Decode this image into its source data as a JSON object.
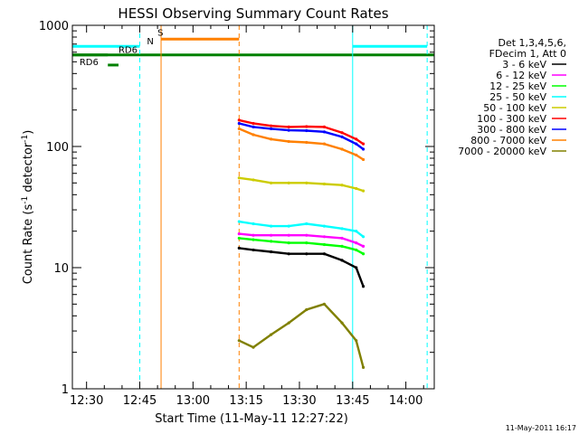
{
  "chart_data": {
    "type": "line",
    "title": "HESSI Observing Summary Count Rates",
    "xlabel": "Start Time (11-May-11 12:27:22)",
    "ylabel_main": "Count Rate (s",
    "ylabel_sup1": "-1",
    "ylabel_mid": " detector",
    "ylabel_sup2": "-1",
    "ylabel_end": ")",
    "x_scale": "time",
    "x_range": [
      "12:26",
      "14:08"
    ],
    "x_ticks": [
      "12:30",
      "12:45",
      "13:00",
      "13:15",
      "13:30",
      "13:45",
      "14:00"
    ],
    "y_scale": "log",
    "y_range": [
      1,
      1000
    ],
    "y_ticks": [
      {
        "label": "1",
        "value": 1
      },
      {
        "label": "10",
        "value": 10
      },
      {
        "label": "100",
        "value": 100
      },
      {
        "label": "1000",
        "value": 1000
      }
    ],
    "legend_header": [
      "Det 1,3,4,5,6,",
      "FDecim 1, Att 0"
    ],
    "legend_position": "right",
    "series": [
      {
        "name": "3 - 6 keV",
        "color": "#000000",
        "x": [
          "13:13",
          "13:17",
          "13:22",
          "13:27",
          "13:32",
          "13:37",
          "13:42",
          "13:46",
          "13:48"
        ],
        "values": [
          14.5,
          14,
          13.5,
          13,
          13,
          13,
          11.5,
          10,
          7
        ]
      },
      {
        "name": "6 - 12 keV",
        "color": "#ff00ff",
        "x": [
          "13:13",
          "13:17",
          "13:22",
          "13:27",
          "13:32",
          "13:37",
          "13:42",
          "13:46",
          "13:48"
        ],
        "values": [
          19,
          18.5,
          18.5,
          18.5,
          18.5,
          18,
          17.5,
          16,
          15
        ]
      },
      {
        "name": "12 - 25 keV",
        "color": "#00ff00",
        "x": [
          "13:13",
          "13:17",
          "13:22",
          "13:27",
          "13:32",
          "13:37",
          "13:42",
          "13:46",
          "13:48"
        ],
        "values": [
          17.5,
          17,
          16.5,
          16,
          16,
          15.5,
          15,
          14,
          13
        ]
      },
      {
        "name": "25 - 50 keV",
        "color": "#00ffff",
        "x": [
          "13:13",
          "13:17",
          "13:22",
          "13:27",
          "13:32",
          "13:37",
          "13:42",
          "13:46",
          "13:48"
        ],
        "values": [
          24,
          23,
          22,
          22,
          23,
          22,
          21,
          20,
          18
        ]
      },
      {
        "name": "50 - 100 keV",
        "color": "#cccc00",
        "x": [
          "13:13",
          "13:17",
          "13:22",
          "13:27",
          "13:32",
          "13:37",
          "13:42",
          "13:46",
          "13:48"
        ],
        "values": [
          55,
          53,
          50,
          50,
          50,
          49,
          48,
          45,
          43
        ]
      },
      {
        "name": "100 - 300 keV",
        "color": "#ff0000",
        "x": [
          "13:13",
          "13:17",
          "13:22",
          "13:27",
          "13:32",
          "13:37",
          "13:42",
          "13:46",
          "13:48"
        ],
        "values": [
          165,
          155,
          148,
          145,
          146,
          145,
          130,
          115,
          105
        ]
      },
      {
        "name": "300 - 800 keV",
        "color": "#0000ff",
        "x": [
          "13:13",
          "13:17",
          "13:22",
          "13:27",
          "13:32",
          "13:37",
          "13:42",
          "13:46",
          "13:48"
        ],
        "values": [
          155,
          145,
          140,
          136,
          135,
          132,
          120,
          105,
          95
        ]
      },
      {
        "name": "800 - 7000 keV",
        "color": "#ff8000",
        "x": [
          "13:13",
          "13:17",
          "13:22",
          "13:27",
          "13:32",
          "13:37",
          "13:42",
          "13:46",
          "13:48"
        ],
        "values": [
          140,
          125,
          115,
          110,
          108,
          105,
          95,
          85,
          78
        ]
      },
      {
        "name": "7000 - 20000 keV",
        "color": "#808000",
        "x": [
          "13:13",
          "13:17",
          "13:22",
          "13:27",
          "13:32",
          "13:37",
          "13:42",
          "13:46",
          "13:48"
        ],
        "values": [
          2.5,
          2.2,
          2.8,
          3.5,
          4.5,
          5,
          3.5,
          2.5,
          1.5
        ]
      }
    ],
    "annotations": [
      {
        "text": "N",
        "color": "#00ffff"
      },
      {
        "text": "S",
        "color": "#ff8000"
      },
      {
        "text": "RD6",
        "color": "#000000"
      },
      {
        "text": "RD6",
        "color": "#000000"
      }
    ],
    "vertical_markers": [
      {
        "x": "12:26",
        "color": "#00ffff",
        "style": "solid"
      },
      {
        "x": "12:45",
        "color": "#00ffff",
        "style": "dashed"
      },
      {
        "x": "12:51",
        "color": "#ff8000",
        "style": "solid"
      },
      {
        "x": "13:13",
        "color": "#ff8000",
        "style": "dashed"
      },
      {
        "x": "13:45",
        "color": "#00ffff",
        "style": "solid"
      },
      {
        "x": "14:06",
        "color": "#00ffff",
        "style": "dashed"
      }
    ],
    "status_bars": [
      {
        "color": "#00ffff",
        "x0": "12:26",
        "x1": "12:45",
        "level": 670
      },
      {
        "color": "#00ffff",
        "x0": "13:45",
        "x1": "14:06",
        "level": 670
      },
      {
        "color": "#ff8000",
        "x0": "12:51",
        "x1": "13:13",
        "level": 770
      },
      {
        "color": "#008000",
        "x0": "12:26",
        "x1": "14:08",
        "level": 570
      },
      {
        "color": "#008000",
        "x0": "12:26",
        "x1": "12:36",
        "level": 570
      },
      {
        "color": "#008000",
        "x0": "12:36",
        "x1": "12:39",
        "level": 470
      }
    ],
    "grid": false,
    "timestamp": "11-May-2011 16:17"
  }
}
